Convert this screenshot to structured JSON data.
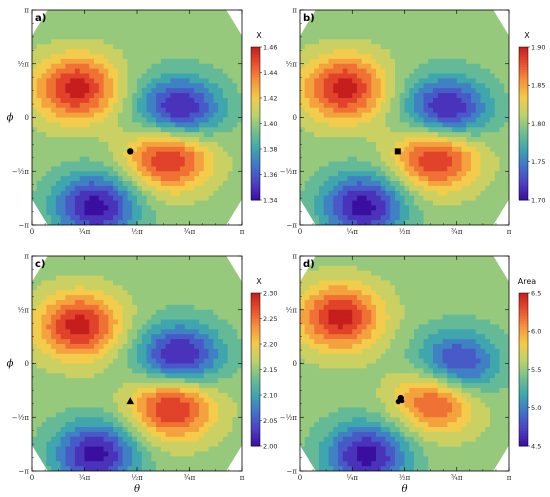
{
  "chart_data": [
    {
      "type": "heatmap",
      "panel_label": "a)",
      "colorbar": {
        "title": "X",
        "ticks": [
          "1.46",
          "1.44",
          "1.42",
          "1.40",
          "1.38",
          "1.36",
          "1.34"
        ],
        "range": [
          1.34,
          1.46
        ]
      },
      "marker": {
        "symbol": "circle",
        "theta": 1.47,
        "phi": -0.99
      },
      "peaks": [
        {
          "theta": 0.66,
          "phi": 0.85,
          "value": 1.46
        },
        {
          "theta": 2.05,
          "phi": -1.15,
          "value": 1.46
        },
        {
          "theta": 2.2,
          "phi": 0.22,
          "value": 1.34
        },
        {
          "theta": 0.95,
          "phi": -2.6,
          "value": 1.34
        }
      ],
      "xlabel": "",
      "ylabel": "ϕ"
    },
    {
      "type": "heatmap",
      "panel_label": "b)",
      "colorbar": {
        "title": "X",
        "ticks": [
          "1.90",
          "1.85",
          "1.80",
          "1.75",
          "1.70"
        ],
        "range": [
          1.7,
          1.9
        ]
      },
      "marker": {
        "symbol": "square",
        "theta": 1.47,
        "phi": -0.99
      },
      "peaks": [
        {
          "theta": 0.66,
          "phi": 0.85,
          "value": 1.9
        },
        {
          "theta": 2.05,
          "phi": -1.15,
          "value": 1.9
        },
        {
          "theta": 2.2,
          "phi": 0.22,
          "value": 1.7
        },
        {
          "theta": 0.95,
          "phi": -2.6,
          "value": 1.7
        }
      ],
      "xlabel": "",
      "ylabel": ""
    },
    {
      "type": "heatmap",
      "panel_label": "c)",
      "colorbar": {
        "title": "X",
        "ticks": [
          "2.30",
          "2.25",
          "2.20",
          "2.15",
          "2.10",
          "2.05",
          "2.00"
        ],
        "range": [
          2.0,
          2.3
        ]
      },
      "marker": {
        "symbol": "triangle",
        "theta": 1.47,
        "phi": -1.1
      },
      "peaks": [
        {
          "theta": 0.7,
          "phi": 1.1,
          "value": 2.3
        },
        {
          "theta": 2.1,
          "phi": -1.25,
          "value": 2.3
        },
        {
          "theta": 2.2,
          "phi": 0.2,
          "value": 2.0
        },
        {
          "theta": 0.95,
          "phi": -2.65,
          "value": 2.0
        }
      ],
      "xlabel": "θ",
      "ylabel": "ϕ"
    },
    {
      "type": "heatmap",
      "panel_label": "d)",
      "colorbar": {
        "title": "Area",
        "ticks": [
          "6.5",
          "6.0",
          "5.5",
          "5.0",
          "4.5"
        ],
        "range": [
          4.5,
          6.5
        ]
      },
      "marker": {
        "symbol": "blob",
        "theta": 1.5,
        "phi": -1.07
      },
      "peaks": [
        {
          "theta": 0.6,
          "phi": 1.35,
          "value": 6.5
        },
        {
          "theta": 2.05,
          "phi": -1.05,
          "value": 6.4
        },
        {
          "theta": 2.35,
          "phi": -0.05,
          "value": 4.6
        },
        {
          "theta": 1.0,
          "phi": -2.7,
          "value": 4.5
        }
      ],
      "xlabel": "θ",
      "ylabel": ""
    }
  ],
  "axes": {
    "x_ticks": [
      "0",
      "¼π",
      "½π",
      "¾π",
      "π"
    ],
    "y_ticks": [
      "π",
      "½π",
      "0",
      "−½π",
      "−π"
    ],
    "xlim": [
      0,
      3.1416
    ],
    "ylim": [
      -3.1416,
      3.1416
    ],
    "colormap": [
      "#3a0fa0",
      "#4f3fc4",
      "#3f74c9",
      "#3fa6ae",
      "#70c08e",
      "#bcd26a",
      "#f2cc4a",
      "#f5943a",
      "#e9502e",
      "#c61d1d"
    ]
  }
}
